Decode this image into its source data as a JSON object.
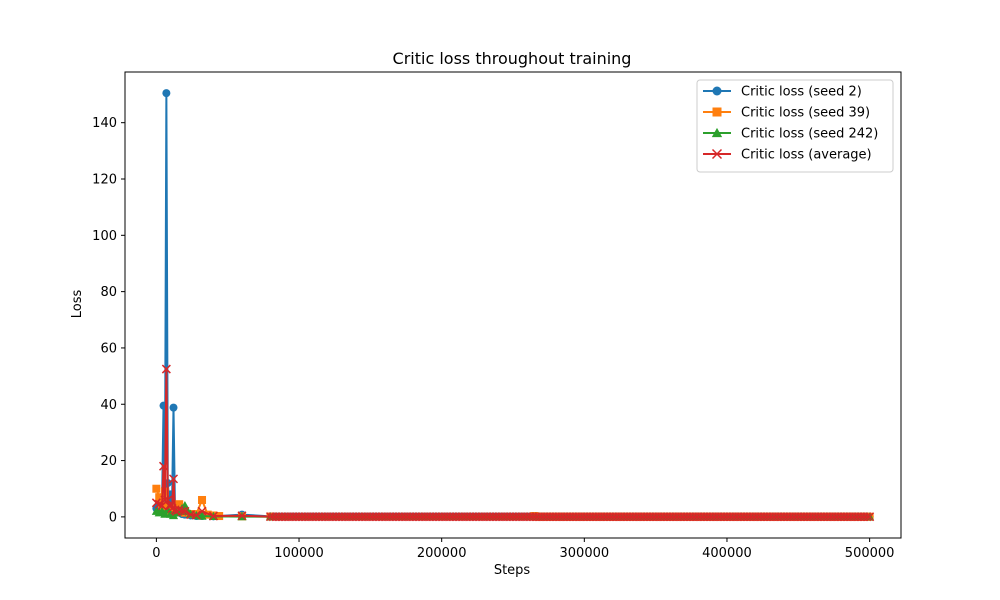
{
  "chart_data": {
    "type": "line",
    "title": "Critic loss throughout training",
    "xlabel": "Steps",
    "ylabel": "Loss",
    "xlim": [
      -22000,
      522000
    ],
    "ylim": [
      -7.5,
      158
    ],
    "xticks": [
      0,
      100000,
      200000,
      300000,
      400000,
      500000
    ],
    "yticks": [
      0,
      20,
      40,
      60,
      80,
      100,
      120,
      140
    ],
    "grid": false,
    "legend_position": "top-right",
    "series": [
      {
        "name": "Critic loss (seed 2)",
        "color": "#1f77b4",
        "marker": "circle",
        "spikes": [
          [
            0,
            3
          ],
          [
            2000,
            5
          ],
          [
            4000,
            6
          ],
          [
            5000,
            39.5
          ],
          [
            6000,
            10
          ],
          [
            7000,
            150.5
          ],
          [
            8000,
            12
          ],
          [
            9000,
            6
          ],
          [
            10000,
            8
          ],
          [
            11000,
            5
          ],
          [
            12000,
            38.8
          ],
          [
            13000,
            4
          ],
          [
            14000,
            2
          ],
          [
            16000,
            1.5
          ],
          [
            18000,
            1
          ],
          [
            20000,
            0.8
          ],
          [
            24000,
            0.5
          ],
          [
            28000,
            0.3
          ],
          [
            32000,
            0.3
          ],
          [
            40000,
            0.2
          ],
          [
            60000,
            0.8
          ],
          [
            80000,
            0.2
          ]
        ],
        "tail_start": 80000,
        "tail_end": 500000,
        "tail_step": 2000,
        "tail_value": 0.1
      },
      {
        "name": "Critic loss (seed 39)",
        "color": "#ff7f0e",
        "marker": "square",
        "spikes": [
          [
            0,
            10
          ],
          [
            2000,
            7
          ],
          [
            4000,
            4
          ],
          [
            6000,
            9
          ],
          [
            8000,
            3
          ],
          [
            10000,
            2
          ],
          [
            12000,
            1.5
          ],
          [
            14000,
            3
          ],
          [
            16000,
            4.5
          ],
          [
            18000,
            2
          ],
          [
            20000,
            1.5
          ],
          [
            24000,
            1
          ],
          [
            28000,
            1
          ],
          [
            32000,
            6
          ],
          [
            36000,
            0.8
          ],
          [
            40000,
            0.5
          ],
          [
            44000,
            0.3
          ],
          [
            60000,
            0.2
          ],
          [
            80000,
            0.1
          ],
          [
            265000,
            0.3
          ]
        ],
        "tail_start": 80000,
        "tail_end": 500000,
        "tail_step": 2000,
        "tail_value": 0.05
      },
      {
        "name": "Critic loss (seed 242)",
        "color": "#2ca02c",
        "marker": "triangle",
        "spikes": [
          [
            0,
            2
          ],
          [
            2000,
            1.5
          ],
          [
            4000,
            2
          ],
          [
            6000,
            1
          ],
          [
            8000,
            2.5
          ],
          [
            10000,
            1
          ],
          [
            12000,
            0.5
          ],
          [
            14000,
            1.5
          ],
          [
            16000,
            2
          ],
          [
            18000,
            3
          ],
          [
            20000,
            4
          ],
          [
            22000,
            2
          ],
          [
            24000,
            1
          ],
          [
            28000,
            0.5
          ],
          [
            32000,
            0.3
          ],
          [
            40000,
            0.2
          ],
          [
            60000,
            0.1
          ],
          [
            80000,
            0.05
          ]
        ],
        "tail_start": 80000,
        "tail_end": 500000,
        "tail_step": 2000,
        "tail_value": 0.02
      },
      {
        "name": "Critic loss (average)",
        "color": "#d62728",
        "marker": "x",
        "spikes": [
          [
            0,
            5
          ],
          [
            2000,
            4.5
          ],
          [
            4000,
            4
          ],
          [
            5000,
            18
          ],
          [
            6000,
            6
          ],
          [
            7000,
            52.5
          ],
          [
            8000,
            6
          ],
          [
            9000,
            4
          ],
          [
            10000,
            4
          ],
          [
            11000,
            3
          ],
          [
            12000,
            13.5
          ],
          [
            13000,
            2.5
          ],
          [
            14000,
            2
          ],
          [
            16000,
            2.5
          ],
          [
            18000,
            2
          ],
          [
            20000,
            2
          ],
          [
            24000,
            0.8
          ],
          [
            28000,
            0.6
          ],
          [
            32000,
            2
          ],
          [
            40000,
            0.3
          ],
          [
            60000,
            0.4
          ],
          [
            80000,
            0.1
          ]
        ],
        "tail_start": 80000,
        "tail_end": 500000,
        "tail_step": 2000,
        "tail_value": 0.05
      }
    ]
  }
}
